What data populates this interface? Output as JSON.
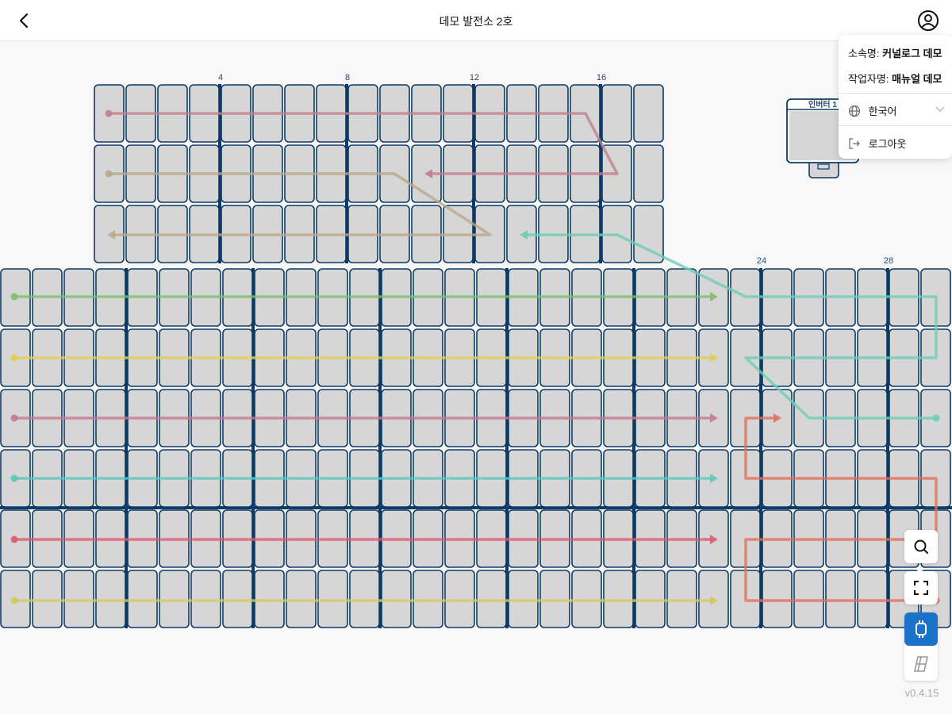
{
  "header": {
    "title": "데모 발전소 2호"
  },
  "menu": {
    "org_label": "소속명:",
    "org_value": "커널로그 데모",
    "worker_label": "작업자명:",
    "worker_value": "매뉴얼 데모",
    "language": "한국어",
    "logout": "로그아웃"
  },
  "layout": {
    "upper_column_labels": [
      "4",
      "8",
      "12",
      "16"
    ],
    "lower_column_labels": [
      "24",
      "28"
    ],
    "inverter_label": "인버터 1"
  },
  "colors": {
    "panel_fill": "#d6d6d6",
    "panel_border": "#0d3b66",
    "accent": "#1a73c8",
    "strings": [
      "#c0808f",
      "#b8a98a",
      "#6fcdb5",
      "#7cbf6e",
      "#e0cf50",
      "#c77a8f",
      "#5cc8bd",
      "#e05a6e",
      "#d4c860",
      "#e0705e"
    ]
  },
  "tools": {
    "search": "search-icon",
    "fullscreen": "fullscreen-icon",
    "inverter_view": "inverter-icon",
    "panel_view": "solar-panel-icon",
    "active": "inverter_view"
  },
  "version": "v0.4.15"
}
